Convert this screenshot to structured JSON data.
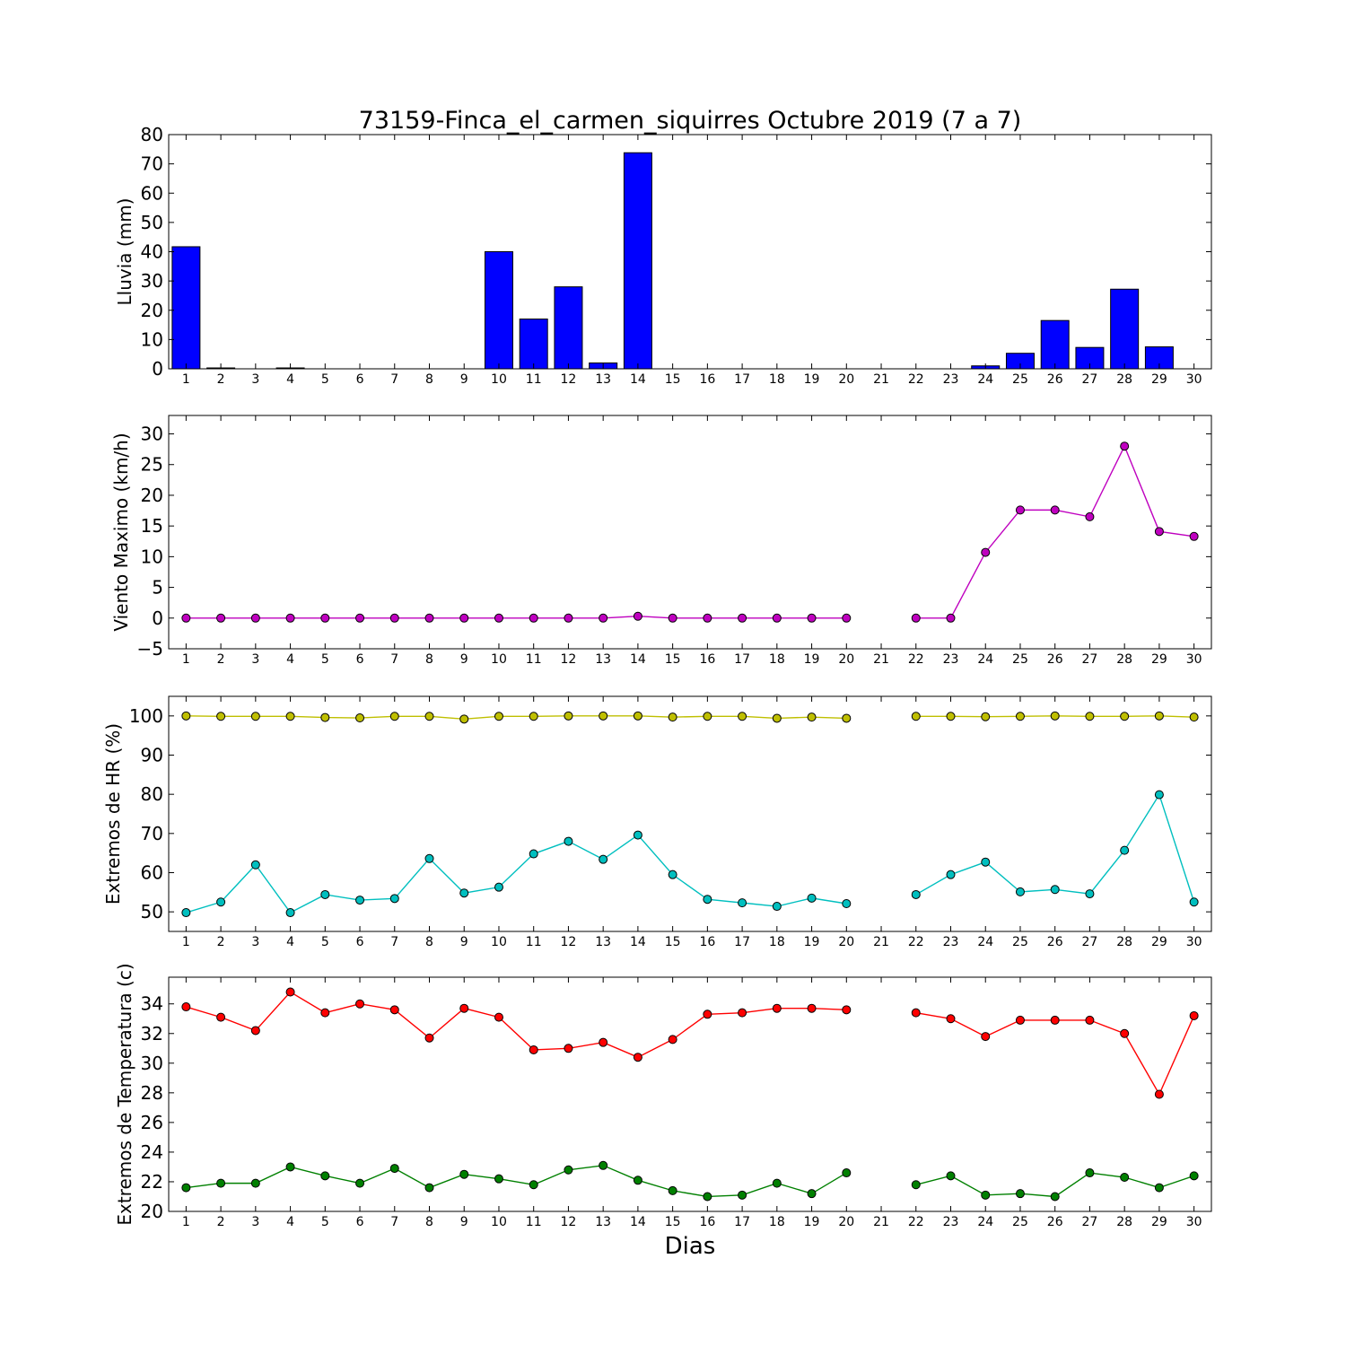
{
  "title": "73159-Finca_el_carmen_siquirres Octubre 2019  (7 a 7)",
  "xlabel": "Dias",
  "colors": {
    "lluvia": "#0000ff",
    "viento": "#bf00bf",
    "hr_max": "#bfbf00",
    "hr_min": "#00bfbf",
    "temp_max": "#ff0000",
    "temp_min": "#008000"
  },
  "chart_data": [
    {
      "type": "bar",
      "ylabel": "Lluvia (mm)",
      "ylim": [
        0,
        80
      ],
      "yticks": [
        0,
        10,
        20,
        30,
        40,
        50,
        60,
        70,
        80
      ],
      "ytick_labels": [
        "0",
        "10",
        "20",
        "30",
        "40",
        "50",
        "60",
        "70",
        "80"
      ],
      "xlim": [
        0.5,
        30.5
      ],
      "x": [
        1,
        2,
        3,
        4,
        5,
        6,
        7,
        8,
        9,
        10,
        11,
        12,
        13,
        14,
        15,
        16,
        17,
        18,
        19,
        20,
        21,
        22,
        23,
        24,
        25,
        26,
        27,
        28,
        29,
        30
      ],
      "series": [
        {
          "values": [
            41.7,
            0.3,
            0,
            0.3,
            0,
            0,
            0,
            0,
            0,
            40.0,
            17.0,
            28.0,
            2.0,
            73.8,
            0,
            0,
            0,
            0,
            0,
            0,
            0,
            0,
            0,
            1.0,
            5.3,
            16.5,
            7.3,
            27.2,
            7.5,
            0
          ]
        }
      ]
    },
    {
      "type": "line",
      "ylabel": "Viento Maximo (km/h)",
      "ylim": [
        -5,
        33
      ],
      "yticks": [
        -5,
        0,
        5,
        10,
        15,
        20,
        25,
        30
      ],
      "ytick_labels": [
        "−5",
        "0",
        "5",
        "10",
        "15",
        "20",
        "25",
        "30"
      ],
      "xlim": [
        0.5,
        30.5
      ],
      "x": [
        1,
        2,
        3,
        4,
        5,
        6,
        7,
        8,
        9,
        10,
        11,
        12,
        13,
        14,
        15,
        16,
        17,
        18,
        19,
        20,
        21,
        22,
        23,
        24,
        25,
        26,
        27,
        28,
        29,
        30
      ],
      "series": [
        {
          "values": [
            0,
            0,
            0,
            0,
            0,
            0,
            0,
            0,
            0,
            0,
            0,
            0,
            0,
            0.3,
            0,
            0,
            0,
            0,
            0,
            0,
            null,
            0,
            0,
            10.7,
            17.6,
            17.6,
            16.5,
            28.0,
            14.1,
            13.3
          ]
        }
      ]
    },
    {
      "type": "line",
      "ylabel": "Extremos de HR (%)",
      "ylim": [
        45,
        105
      ],
      "yticks": [
        50,
        60,
        70,
        80,
        90,
        100
      ],
      "ytick_labels": [
        "50",
        "60",
        "70",
        "80",
        "90",
        "100"
      ],
      "xlim": [
        0.5,
        30.5
      ],
      "x": [
        1,
        2,
        3,
        4,
        5,
        6,
        7,
        8,
        9,
        10,
        11,
        12,
        13,
        14,
        15,
        16,
        17,
        18,
        19,
        20,
        21,
        22,
        23,
        24,
        25,
        26,
        27,
        28,
        29,
        30
      ],
      "series": [
        {
          "values": [
            100,
            99.9,
            99.9,
            99.9,
            99.6,
            99.5,
            99.9,
            99.9,
            99.2,
            99.9,
            99.9,
            100,
            100,
            100,
            99.7,
            99.9,
            99.9,
            99.4,
            99.7,
            99.4,
            null,
            99.9,
            99.9,
            99.8,
            99.9,
            100,
            99.9,
            99.9,
            100,
            99.7
          ]
        },
        {
          "values": [
            49.8,
            52.5,
            62.0,
            49.8,
            54.4,
            53.0,
            53.4,
            63.6,
            54.8,
            56.3,
            64.8,
            68.0,
            63.4,
            69.6,
            59.5,
            53.2,
            52.3,
            51.4,
            53.5,
            52.1,
            null,
            54.4,
            59.5,
            62.7,
            55.1,
            55.7,
            54.6,
            65.7,
            79.9,
            52.5
          ]
        }
      ]
    },
    {
      "type": "line",
      "ylabel": "Extremos de Temperatura (c)",
      "ylim": [
        20,
        35.8
      ],
      "yticks": [
        20,
        22,
        24,
        26,
        28,
        30,
        32,
        34
      ],
      "ytick_labels": [
        "20",
        "22",
        "24",
        "26",
        "28",
        "30",
        "32",
        "34"
      ],
      "xlim": [
        0.5,
        30.5
      ],
      "x": [
        1,
        2,
        3,
        4,
        5,
        6,
        7,
        8,
        9,
        10,
        11,
        12,
        13,
        14,
        15,
        16,
        17,
        18,
        19,
        20,
        21,
        22,
        23,
        24,
        25,
        26,
        27,
        28,
        29,
        30
      ],
      "series": [
        {
          "values": [
            33.8,
            33.1,
            32.2,
            34.8,
            33.4,
            34.0,
            33.6,
            31.7,
            33.7,
            33.1,
            30.9,
            31.0,
            31.4,
            30.4,
            31.6,
            33.3,
            33.4,
            33.7,
            33.7,
            33.6,
            null,
            33.4,
            33.0,
            31.8,
            32.9,
            32.9,
            32.9,
            32.0,
            27.9,
            33.2
          ]
        },
        {
          "values": [
            21.6,
            21.9,
            21.9,
            23.0,
            22.4,
            21.9,
            22.9,
            21.6,
            22.5,
            22.2,
            21.8,
            22.8,
            23.1,
            22.1,
            21.4,
            21.0,
            21.1,
            21.9,
            21.2,
            22.6,
            null,
            21.8,
            22.4,
            21.1,
            21.2,
            21.0,
            22.6,
            22.3,
            21.6,
            22.4
          ]
        }
      ]
    }
  ]
}
